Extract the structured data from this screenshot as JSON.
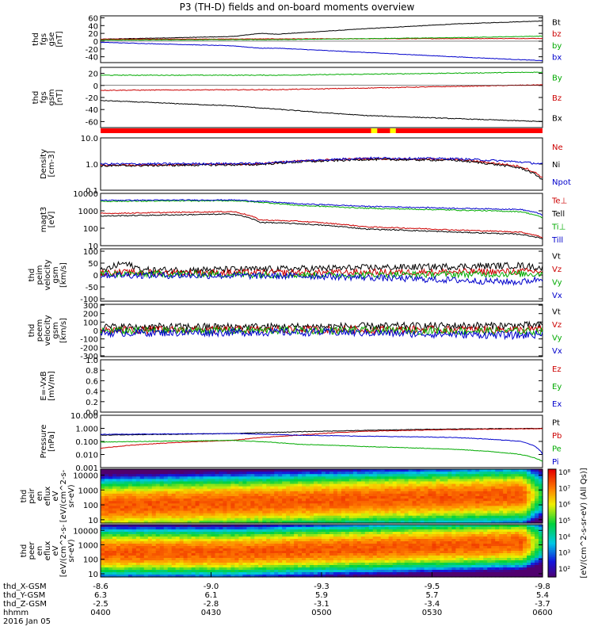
{
  "title": "P3 (TH-D) fields and on-board moments overview",
  "chart_data": [
    {
      "panel": "fgs-gse",
      "type": "line",
      "ylabel": [
        "thd",
        "fgs",
        "gse",
        "[nT]"
      ],
      "yticks": [
        60,
        40,
        20,
        0,
        -20,
        -40
      ],
      "ylim": [
        -55,
        65
      ],
      "series": [
        {
          "name": "Bt",
          "color": "#000000",
          "x": [
            0,
            0.3,
            0.36,
            0.4,
            0.6,
            0.8,
            1
          ],
          "y": [
            5,
            12,
            20,
            18,
            32,
            44,
            52
          ]
        },
        {
          "name": "bz",
          "color": "#cc0000",
          "x": [
            0,
            0.5,
            1
          ],
          "y": [
            5,
            6,
            7
          ]
        },
        {
          "name": "by",
          "color": "#00aa00",
          "x": [
            0,
            0.4,
            0.8,
            1
          ],
          "y": [
            3,
            4,
            9,
            13
          ]
        },
        {
          "name": "bx",
          "color": "#0000cc",
          "x": [
            0,
            0.3,
            0.36,
            0.4,
            0.6,
            0.8,
            1
          ],
          "y": [
            -3,
            -12,
            -18,
            -18,
            -29,
            -40,
            -50
          ]
        }
      ]
    },
    {
      "panel": "fgs-gsm",
      "type": "line",
      "ylabel": [
        "thd",
        "fgs",
        "gsm",
        "[nT]"
      ],
      "yticks": [
        20,
        0,
        -20,
        -40,
        -60
      ],
      "ylim": [
        -70,
        30
      ],
      "series": [
        {
          "name": "By",
          "color": "#00aa00",
          "x": [
            0,
            0.4,
            1
          ],
          "y": [
            17,
            17,
            22
          ]
        },
        {
          "name": "Bz",
          "color": "#cc0000",
          "x": [
            0,
            0.4,
            1
          ],
          "y": [
            -8,
            -7,
            1
          ]
        },
        {
          "name": "Bx",
          "color": "#000000",
          "x": [
            0,
            0.3,
            0.5,
            0.6,
            0.8,
            1
          ],
          "y": [
            -25,
            -34,
            -45,
            -50,
            -55,
            -60
          ]
        }
      ]
    },
    {
      "panel": "mode-bar",
      "type": "bar",
      "segments": [
        {
          "from": 0,
          "to": 0.612,
          "color": "#ff0000"
        },
        {
          "from": 0.612,
          "to": 0.626,
          "color": "#ffff00"
        },
        {
          "from": 0.626,
          "to": 0.655,
          "color": "#ff0000"
        },
        {
          "from": 0.655,
          "to": 0.668,
          "color": "#ffff00"
        },
        {
          "from": 0.668,
          "to": 1,
          "color": "#ff0000"
        }
      ]
    },
    {
      "panel": "density",
      "type": "line",
      "log": true,
      "ylabel": [
        "Density",
        "[cm-3]"
      ],
      "yticks": [
        "10.0",
        "1.0",
        "0.1"
      ],
      "ytick_values": [
        10,
        1,
        0.1
      ],
      "ylim": [
        0.1,
        10
      ],
      "series": [
        {
          "name": "Ne",
          "color": "#cc0000",
          "x": [
            0,
            0.35,
            0.45,
            0.6,
            0.8,
            0.95,
            1
          ],
          "y": [
            0.9,
            1.0,
            1.3,
            1.6,
            1.5,
            0.8,
            0.3
          ]
        },
        {
          "name": "Ni",
          "color": "#000000",
          "x": [
            0,
            0.35,
            0.45,
            0.6,
            0.8,
            0.95,
            1
          ],
          "y": [
            0.85,
            0.95,
            1.2,
            1.5,
            1.4,
            0.7,
            0.25
          ]
        },
        {
          "name": "Npot",
          "color": "#0000cc",
          "x": [
            0,
            0.35,
            0.45,
            0.6,
            0.8,
            0.95,
            1
          ],
          "y": [
            1.0,
            1.05,
            1.3,
            1.7,
            1.6,
            1.2,
            1.0
          ]
        }
      ]
    },
    {
      "panel": "temperature",
      "type": "line",
      "log": true,
      "ylabel": [
        "magt3",
        "[eV]"
      ],
      "yticks": [
        "10000",
        "1000",
        "100",
        "10"
      ],
      "ytick_values": [
        10000,
        1000,
        100,
        10
      ],
      "ylim": [
        10,
        10000
      ],
      "series": [
        {
          "name": "Te⊥",
          "color": "#cc0000",
          "x": [
            0,
            0.3,
            0.36,
            0.45,
            0.6,
            0.8,
            0.95,
            1
          ],
          "y": [
            700,
            900,
            300,
            250,
            120,
            80,
            60,
            30
          ]
        },
        {
          "name": "Tell",
          "color": "#000000",
          "x": [
            0,
            0.3,
            0.36,
            0.45,
            0.6,
            0.8,
            0.95,
            1
          ],
          "y": [
            500,
            650,
            220,
            180,
            90,
            60,
            45,
            25
          ]
        },
        {
          "name": "Ti⊥",
          "color": "#00aa00",
          "x": [
            0,
            0.3,
            0.45,
            0.6,
            0.8,
            0.95,
            1
          ],
          "y": [
            3500,
            3800,
            2000,
            1400,
            1100,
            900,
            400
          ]
        },
        {
          "name": "Till",
          "color": "#0000cc",
          "x": [
            0,
            0.3,
            0.45,
            0.6,
            0.8,
            0.95,
            1
          ],
          "y": [
            4000,
            4200,
            2500,
            1800,
            1400,
            1200,
            600
          ]
        }
      ]
    },
    {
      "panel": "peim-velocity",
      "type": "line",
      "ylabel": [
        "thd",
        "peim",
        "velocity",
        "gsm",
        "[km/s]"
      ],
      "yticks": [
        100,
        50,
        0,
        -50,
        -100
      ],
      "ylim": [
        -110,
        110
      ],
      "series": [
        {
          "name": "Vt",
          "color": "#000000",
          "x": [
            0,
            0.05,
            0.1,
            0.4,
            0.95,
            1
          ],
          "y": [
            15,
            50,
            20,
            25,
            40,
            30
          ]
        },
        {
          "name": "Vz",
          "color": "#cc0000",
          "x": [
            0,
            0.5,
            1
          ],
          "y": [
            10,
            10,
            15
          ]
        },
        {
          "name": "Vy",
          "color": "#00aa00",
          "x": [
            0,
            0.5,
            1
          ],
          "y": [
            5,
            0,
            5
          ]
        },
        {
          "name": "Vx",
          "color": "#0000cc",
          "x": [
            0,
            0.5,
            0.95,
            1
          ],
          "y": [
            0,
            -5,
            -30,
            -15
          ]
        }
      ]
    },
    {
      "panel": "peem-velocity",
      "type": "line",
      "ylabel": [
        "thd",
        "peem",
        "velocity",
        "gsm",
        "[km/s]"
      ],
      "yticks": [
        300,
        200,
        100,
        0,
        -100,
        -200,
        -300
      ],
      "ylim": [
        -310,
        310
      ],
      "series": [
        {
          "name": "Vt",
          "color": "#000000",
          "x": [
            0,
            0.5,
            1
          ],
          "y": [
            40,
            45,
            60
          ]
        },
        {
          "name": "Vz",
          "color": "#cc0000",
          "x": [
            0,
            0.5,
            1
          ],
          "y": [
            5,
            10,
            10
          ]
        },
        {
          "name": "Vy",
          "color": "#00aa00",
          "x": [
            0,
            0.5,
            1
          ],
          "y": [
            -5,
            0,
            -10
          ]
        },
        {
          "name": "Vx",
          "color": "#0000cc",
          "x": [
            0,
            0.5,
            0.95,
            1
          ],
          "y": [
            -30,
            -20,
            -60,
            -40
          ]
        }
      ]
    },
    {
      "panel": "efield",
      "type": "line",
      "ylabel": [
        "E=-VxB",
        "[mV/m]"
      ],
      "yticks": [
        "1.0",
        "0.8",
        "0.6",
        "0.4",
        "0.2",
        "0.0"
      ],
      "ytick_values": [
        1.0,
        0.8,
        0.6,
        0.4,
        0.2,
        0.0
      ],
      "ylim": [
        0,
        1
      ],
      "series": [
        {
          "name": "Ez",
          "color": "#cc0000",
          "x": [],
          "y": []
        },
        {
          "name": "Ey",
          "color": "#00aa00",
          "x": [],
          "y": []
        },
        {
          "name": "Ex",
          "color": "#0000cc",
          "x": [],
          "y": []
        }
      ]
    },
    {
      "panel": "pressure",
      "type": "line",
      "log": true,
      "ylabel": [
        "Pressure",
        "[nPa]"
      ],
      "yticks": [
        "10.000",
        "1.000",
        "0.100",
        "0.010",
        "0.001"
      ],
      "ytick_values": [
        10,
        1,
        0.1,
        0.01,
        0.001
      ],
      "ylim": [
        0.001,
        10
      ],
      "series": [
        {
          "name": "Pt",
          "color": "#000000",
          "x": [
            0,
            0.3,
            0.6,
            0.8,
            1
          ],
          "y": [
            0.3,
            0.4,
            0.7,
            0.9,
            1.0
          ]
        },
        {
          "name": "Pb",
          "color": "#cc0000",
          "x": [
            0,
            0.3,
            0.45,
            0.6,
            0.8,
            1
          ],
          "y": [
            0.03,
            0.12,
            0.3,
            0.6,
            0.8,
            0.95
          ]
        },
        {
          "name": "Pe",
          "color": "#00aa00",
          "x": [
            0,
            0.3,
            0.45,
            0.6,
            0.8,
            0.95,
            1
          ],
          "y": [
            0.09,
            0.12,
            0.06,
            0.04,
            0.025,
            0.01,
            0.003
          ]
        },
        {
          "name": "Pi",
          "color": "#0000cc",
          "x": [
            0,
            0.3,
            0.45,
            0.6,
            0.8,
            0.95,
            1
          ],
          "y": [
            0.35,
            0.4,
            0.3,
            0.25,
            0.2,
            0.1,
            0.01
          ]
        }
      ]
    },
    {
      "panel": "peir-spectrogram",
      "type": "heatmap",
      "log": true,
      "ylabel": [
        "thd",
        "peir",
        "en",
        "eflux",
        "eV",
        "[eV/(cm^2-s-",
        "sr-eV)"
      ],
      "yticks": [
        "10000",
        "1000",
        "100",
        "10"
      ],
      "ytick_values": [
        10000,
        1000,
        100,
        10
      ],
      "ylim": [
        6,
        25000
      ]
    },
    {
      "panel": "peer-spectrogram",
      "type": "heatmap",
      "log": true,
      "ylabel": [
        "thd",
        "peer",
        "en",
        "eflux",
        "eV",
        "[eV/(cm^2-s-",
        "sr-eV)"
      ],
      "yticks": [
        "10000",
        "1000",
        "100",
        "10"
      ],
      "ytick_values": [
        10000,
        1000,
        100,
        10
      ],
      "ylim": [
        6,
        25000
      ]
    }
  ],
  "colorbar": {
    "ticks": [
      "10⁸",
      "10⁷",
      "10⁶",
      "10⁵",
      "10⁴",
      "10³",
      "10²"
    ],
    "tick_values": [
      8,
      7,
      6,
      5,
      4,
      3,
      2
    ],
    "range": [
      1.5,
      8.2
    ],
    "label": "[eV/(cm^2-s-sr-eV) (All Qs)]"
  },
  "xaxis": {
    "rows": [
      {
        "label": "thd_X-GSM",
        "values": [
          "-8.6",
          "-9.0",
          "-9.3",
          "-9.5",
          "-9.8"
        ]
      },
      {
        "label": "thd_Y-GSM",
        "values": [
          "6.3",
          "6.1",
          "5.9",
          "5.7",
          "5.4"
        ]
      },
      {
        "label": "thd_Z-GSM",
        "values": [
          "-2.5",
          "-2.8",
          "-3.1",
          "-3.4",
          "-3.7"
        ]
      },
      {
        "label": "hhmm",
        "values": [
          "0400",
          "0430",
          "0500",
          "0530",
          "0600"
        ]
      }
    ],
    "date": "2016 Jan 05"
  }
}
